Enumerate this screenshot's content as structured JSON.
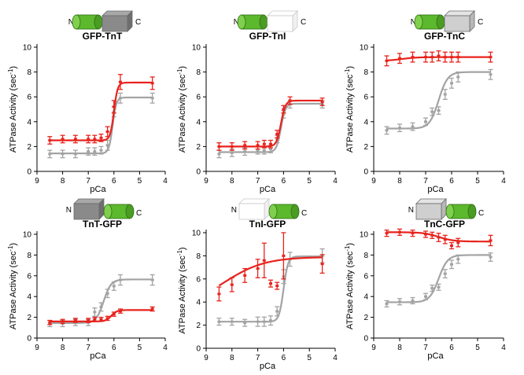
{
  "figure": {
    "n_terminus_label": "N",
    "c_terminus_label": "C",
    "ylabel": "ATPase Activity (sec",
    "ylabel_sup": "-1",
    "ylabel_close": ")",
    "xlabel": "pCa",
    "colors": {
      "red": "#e8221c",
      "gray": "#a3a3a3",
      "gfp_green": "#5cb82d",
      "dark_box": "#8a8a8a",
      "light_box": "#cfcfcf",
      "white_box": "#ffffff"
    }
  },
  "chart_data": [
    {
      "type": "line",
      "title": "GFP-TnT",
      "construct": {
        "order": "gfp-first",
        "protein_shade": "dark"
      },
      "xlabel": "pCa",
      "ylabel": "ATPase Activity (sec-1)",
      "xlim": [
        9,
        4
      ],
      "ylim": [
        0,
        10
      ],
      "xticks": [
        9,
        8,
        7,
        6,
        5,
        4
      ],
      "yticks": [
        0,
        2,
        4,
        6,
        8,
        10
      ],
      "series": [
        {
          "name": "gray",
          "color": "gray",
          "x": [
            8.5,
            8.0,
            7.5,
            7.0,
            6.75,
            6.5,
            6.25,
            6.0,
            5.75,
            4.5
          ],
          "y": [
            1.4,
            1.4,
            1.4,
            1.6,
            1.6,
            1.7,
            2.1,
            4.8,
            5.9,
            5.9
          ],
          "err": [
            0.3,
            0.3,
            0.3,
            0.3,
            0.3,
            0.3,
            0.4,
            0.4,
            0.4,
            0.4
          ],
          "fit": {
            "min": 1.45,
            "max": 5.95,
            "pca50": 6.05,
            "n": 6
          }
        },
        {
          "name": "red",
          "color": "red",
          "x": [
            8.5,
            8.0,
            7.5,
            7.0,
            6.75,
            6.5,
            6.25,
            6.0,
            5.75,
            4.5
          ],
          "y": [
            2.5,
            2.6,
            2.6,
            2.6,
            2.6,
            2.7,
            3.2,
            5.2,
            7.2,
            7.1
          ],
          "err": [
            0.3,
            0.3,
            0.3,
            0.3,
            0.3,
            0.3,
            0.4,
            0.5,
            0.6,
            0.5
          ],
          "fit": {
            "min": 2.5,
            "max": 7.15,
            "pca50": 6.0,
            "n": 6
          }
        }
      ]
    },
    {
      "type": "line",
      "title": "GFP-TnI",
      "construct": {
        "order": "gfp-first",
        "protein_shade": "white"
      },
      "xlabel": "pCa",
      "ylabel": "ATPase Activity (sec-1)",
      "xlim": [
        9,
        4
      ],
      "ylim": [
        0,
        10
      ],
      "xticks": [
        9,
        8,
        7,
        6,
        5,
        4
      ],
      "yticks": [
        0,
        2,
        4,
        6,
        8,
        10
      ],
      "series": [
        {
          "name": "gray",
          "color": "gray",
          "x": [
            8.5,
            8.0,
            7.5,
            7.0,
            6.75,
            6.5,
            6.25,
            6.0,
            5.75,
            4.5
          ],
          "y": [
            1.4,
            1.5,
            1.6,
            1.7,
            1.7,
            1.8,
            2.6,
            4.6,
            5.4,
            5.4
          ],
          "err": [
            0.3,
            0.3,
            0.3,
            0.3,
            0.3,
            0.3,
            0.3,
            0.3,
            0.3,
            0.3
          ],
          "fit": {
            "min": 1.55,
            "max": 5.45,
            "pca50": 6.1,
            "n": 5
          }
        },
        {
          "name": "red",
          "color": "red",
          "x": [
            8.5,
            8.0,
            7.5,
            7.0,
            6.75,
            6.5,
            6.25,
            6.0,
            5.75,
            4.5
          ],
          "y": [
            2.0,
            2.0,
            2.1,
            2.1,
            2.2,
            2.2,
            3.0,
            5.0,
            5.7,
            5.6
          ],
          "err": [
            0.3,
            0.3,
            0.3,
            0.3,
            0.3,
            0.3,
            0.3,
            0.3,
            0.3,
            0.3
          ],
          "fit": {
            "min": 2.0,
            "max": 5.7,
            "pca50": 6.1,
            "n": 5
          }
        }
      ]
    },
    {
      "type": "line",
      "title": "GFP-TnC",
      "construct": {
        "order": "gfp-first",
        "protein_shade": "light"
      },
      "xlabel": "pCa",
      "ylabel": "ATPase Activity (sec-1)",
      "xlim": [
        9,
        4
      ],
      "ylim": [
        0,
        10
      ],
      "xticks": [
        9,
        8,
        7,
        6,
        5,
        4
      ],
      "yticks": [
        0,
        2,
        4,
        6,
        8,
        10
      ],
      "series": [
        {
          "name": "gray",
          "color": "gray",
          "x": [
            8.5,
            8.0,
            7.5,
            7.0,
            6.75,
            6.5,
            6.25,
            6.0,
            5.75,
            4.5
          ],
          "y": [
            3.3,
            3.5,
            3.6,
            4.0,
            4.8,
            4.9,
            6.2,
            7.1,
            7.6,
            7.8
          ],
          "err": [
            0.3,
            0.3,
            0.3,
            0.3,
            0.3,
            0.3,
            0.4,
            0.4,
            0.4,
            0.4
          ],
          "fit": {
            "min": 3.45,
            "max": 8.0,
            "pca50": 6.5,
            "n": 2.5
          }
        },
        {
          "name": "red",
          "color": "red",
          "x": [
            8.5,
            8.0,
            7.5,
            7.0,
            6.75,
            6.5,
            6.25,
            6.0,
            5.75,
            4.5
          ],
          "y": [
            8.9,
            9.1,
            9.2,
            9.2,
            9.2,
            9.3,
            9.2,
            9.2,
            9.2,
            9.2
          ],
          "err": [
            0.4,
            0.4,
            0.4,
            0.4,
            0.4,
            0.4,
            0.4,
            0.4,
            0.4,
            0.4
          ],
          "fit": {
            "min": 8.9,
            "max": 9.2,
            "pca50": 7.9,
            "n": 1.5
          }
        }
      ]
    },
    {
      "type": "line",
      "title": "TnT-GFP",
      "construct": {
        "order": "protein-first",
        "protein_shade": "dark"
      },
      "xlabel": "pCa",
      "ylabel": "ATPase Activity (sec-1)",
      "xlim": [
        9,
        4
      ],
      "ylim": [
        0,
        10
      ],
      "xticks": [
        9,
        8,
        7,
        6,
        5,
        4
      ],
      "yticks": [
        0,
        2,
        4,
        6,
        8,
        10
      ],
      "series": [
        {
          "name": "gray",
          "color": "gray",
          "x": [
            8.5,
            8.0,
            7.5,
            7.0,
            6.75,
            6.5,
            6.25,
            6.0,
            5.75,
            4.5
          ],
          "y": [
            1.4,
            1.4,
            1.5,
            1.5,
            2.5,
            3.0,
            4.3,
            5.0,
            5.6,
            5.6
          ],
          "err": [
            0.3,
            0.3,
            0.3,
            0.3,
            0.4,
            0.4,
            0.4,
            0.4,
            0.5,
            0.5
          ],
          "fit": {
            "min": 1.45,
            "max": 5.65,
            "pca50": 6.4,
            "n": 3
          }
        },
        {
          "name": "red",
          "color": "red",
          "x": [
            8.5,
            8.0,
            7.5,
            7.0,
            6.75,
            6.5,
            6.25,
            6.0,
            5.75,
            4.5
          ],
          "y": [
            1.5,
            1.6,
            1.7,
            1.7,
            1.8,
            1.8,
            1.9,
            2.3,
            2.6,
            2.8
          ],
          "err": [
            0.2,
            0.2,
            0.2,
            0.2,
            0.2,
            0.2,
            0.2,
            0.2,
            0.2,
            0.2
          ],
          "fit": {
            "min": 1.6,
            "max": 2.7,
            "pca50": 6.1,
            "n": 4
          }
        }
      ]
    },
    {
      "type": "line",
      "title": "TnI-GFP",
      "construct": {
        "order": "protein-first",
        "protein_shade": "white"
      },
      "xlabel": "pCa",
      "ylabel": "ATPase Activity (sec-1)",
      "xlim": [
        9,
        4
      ],
      "ylim": [
        0,
        10
      ],
      "xticks": [
        9,
        8,
        7,
        6,
        5,
        4
      ],
      "yticks": [
        0,
        2,
        4,
        6,
        8,
        10
      ],
      "series": [
        {
          "name": "gray",
          "color": "gray",
          "x": [
            8.5,
            8.0,
            7.5,
            7.0,
            6.75,
            6.5,
            6.25,
            6.0,
            5.75,
            4.5
          ],
          "y": [
            2.3,
            2.3,
            2.2,
            2.3,
            2.3,
            2.4,
            3.2,
            6.2,
            7.7,
            8.0
          ],
          "err": [
            0.3,
            0.3,
            0.3,
            0.4,
            0.4,
            0.4,
            0.4,
            0.6,
            0.6,
            0.6
          ],
          "fit": {
            "min": 2.3,
            "max": 7.95,
            "pca50": 6.0,
            "n": 5
          }
        },
        {
          "name": "red",
          "color": "red",
          "x": [
            8.5,
            8.0,
            7.5,
            7.0,
            6.75,
            6.5,
            6.25,
            6.0,
            4.5
          ],
          "y": [
            4.7,
            5.5,
            6.3,
            6.9,
            7.6,
            5.6,
            5.4,
            8.0,
            7.3
          ],
          "err": [
            0.6,
            0.6,
            0.6,
            0.8,
            1.5,
            0.3,
            0.3,
            2.0,
            0.8
          ],
          "fit": {
            "min": 3.5,
            "max": 7.9,
            "pca50": 8.3,
            "n": 0.55
          }
        }
      ]
    },
    {
      "type": "line",
      "title": "TnC-GFP",
      "construct": {
        "order": "protein-first",
        "protein_shade": "light"
      },
      "xlabel": "pCa",
      "ylabel": "ATPase Activity (sec-1)",
      "xlim": [
        9,
        4
      ],
      "ylim": [
        0,
        10
      ],
      "xticks": [
        9,
        8,
        7,
        6,
        5,
        4
      ],
      "yticks": [
        0,
        2,
        4,
        6,
        8,
        10
      ],
      "series": [
        {
          "name": "gray",
          "color": "gray",
          "x": [
            8.5,
            8.0,
            7.5,
            7.0,
            6.75,
            6.5,
            6.25,
            6.0,
            5.75,
            4.5
          ],
          "y": [
            3.3,
            3.5,
            3.6,
            4.0,
            4.8,
            4.9,
            6.2,
            7.1,
            7.6,
            7.8
          ],
          "err": [
            0.3,
            0.3,
            0.3,
            0.3,
            0.3,
            0.3,
            0.4,
            0.4,
            0.4,
            0.4
          ],
          "fit": {
            "min": 3.45,
            "max": 8.0,
            "pca50": 6.5,
            "n": 2.5
          }
        },
        {
          "name": "red",
          "color": "red",
          "x": [
            8.5,
            8.0,
            7.5,
            7.0,
            6.75,
            6.5,
            6.25,
            6.0,
            5.75,
            4.5
          ],
          "y": [
            10.1,
            10.2,
            10.1,
            10.0,
            9.9,
            9.7,
            9.5,
            8.9,
            9.2,
            9.4
          ],
          "err": [
            0.3,
            0.3,
            0.3,
            0.3,
            0.3,
            0.4,
            0.4,
            0.3,
            0.4,
            0.5
          ],
          "fit": {
            "min": 9.3,
            "max": 10.2,
            "pca50": 6.5,
            "n": 1.5,
            "decreasing": true
          }
        }
      ]
    }
  ]
}
